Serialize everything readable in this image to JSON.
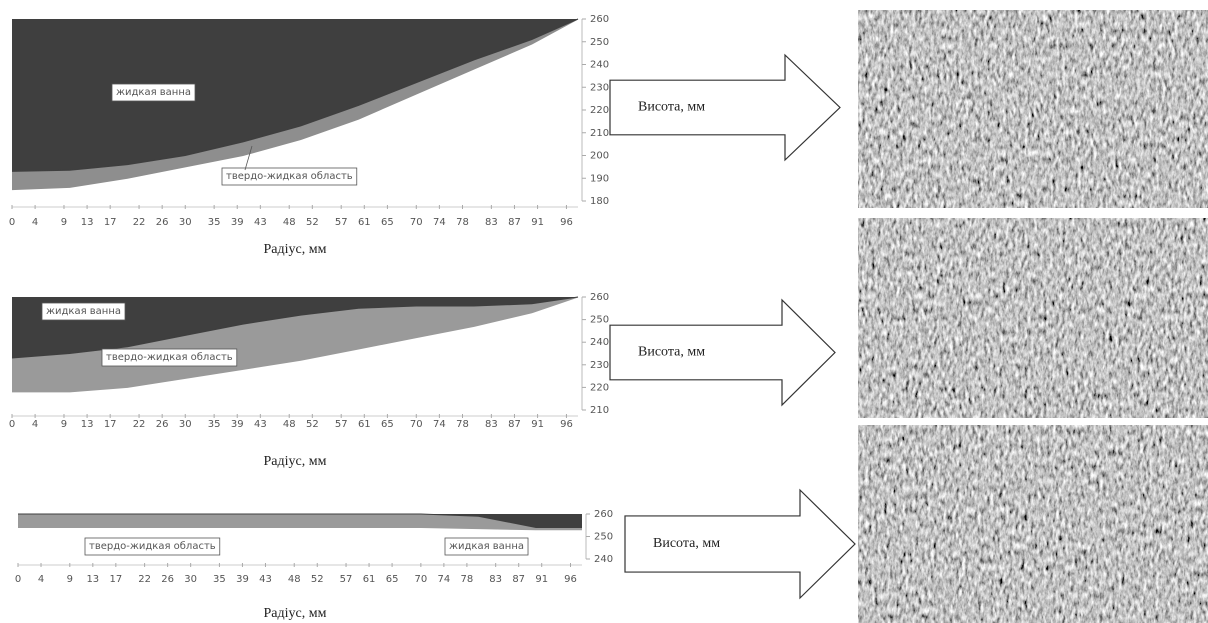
{
  "chart_data": [
    {
      "type": "area",
      "xlabel": "Радіус, мм",
      "ylabel": "Висота, мм",
      "x": [
        0,
        10,
        20,
        30,
        40,
        50,
        60,
        70,
        80,
        90,
        98
      ],
      "series": [
        {
          "name": "жидкая ванна",
          "color": "#3f3f3f",
          "values": [
            193,
            193.5,
            196,
            200,
            206,
            213,
            222,
            232,
            242,
            251,
            260
          ]
        },
        {
          "name": "твердо-жидкая область",
          "color": "#8e8e8e",
          "values": [
            185,
            186,
            190,
            195,
            200,
            207,
            216,
            227,
            238,
            249,
            260
          ]
        }
      ],
      "xlim": [
        0,
        98
      ],
      "ylim": [
        180,
        260
      ],
      "xticks": [
        0,
        4,
        9,
        13,
        17,
        22,
        26,
        30,
        35,
        39,
        43,
        48,
        52,
        57,
        61,
        65,
        70,
        74,
        78,
        83,
        87,
        91,
        96
      ],
      "yticks": [
        180,
        190,
        200,
        210,
        220,
        230,
        240,
        250,
        260
      ]
    },
    {
      "type": "area",
      "xlabel": "Радіус, мм",
      "ylabel": "Висота, мм",
      "x": [
        0,
        10,
        20,
        30,
        40,
        50,
        60,
        70,
        80,
        90,
        98
      ],
      "series": [
        {
          "name": "жидкая ванна",
          "color": "#3f3f3f",
          "values": [
            233,
            235,
            238,
            243,
            248,
            252,
            255,
            256,
            256,
            257,
            260
          ]
        },
        {
          "name": "твердо-жидкая область",
          "color": "#9a9a9a",
          "values": [
            218,
            218,
            220,
            224,
            228,
            232,
            237,
            242,
            247,
            253,
            260
          ]
        }
      ],
      "xlim": [
        0,
        98
      ],
      "ylim": [
        210,
        260
      ],
      "xticks": [
        0,
        4,
        9,
        13,
        17,
        22,
        26,
        30,
        35,
        39,
        43,
        48,
        52,
        57,
        61,
        65,
        70,
        74,
        78,
        83,
        87,
        91,
        96
      ],
      "yticks": [
        210,
        220,
        230,
        240,
        250,
        260
      ]
    },
    {
      "type": "area",
      "xlabel": "Радіус, мм",
      "ylabel": "Висота, мм",
      "x": [
        0,
        10,
        20,
        30,
        40,
        50,
        60,
        70,
        80,
        90,
        98
      ],
      "series": [
        {
          "name": "жидкая ванна",
          "color": "#3f3f3f",
          "values": [
            260,
            260,
            260,
            260,
            260,
            260,
            260,
            260,
            259,
            254,
            254
          ]
        },
        {
          "name": "твердо-жидкая область",
          "color": "#9a9a9a",
          "values": [
            254,
            254,
            254,
            254,
            254,
            254,
            254,
            254,
            253.5,
            253,
            253
          ]
        }
      ],
      "xlim": [
        0,
        98
      ],
      "ylim": [
        240,
        260
      ],
      "xticks": [
        0,
        4,
        9,
        13,
        17,
        22,
        26,
        30,
        35,
        39,
        43,
        48,
        52,
        57,
        61,
        65,
        70,
        74,
        78,
        83,
        87,
        91,
        96
      ],
      "yticks": [
        240,
        250,
        260
      ]
    }
  ]
}
